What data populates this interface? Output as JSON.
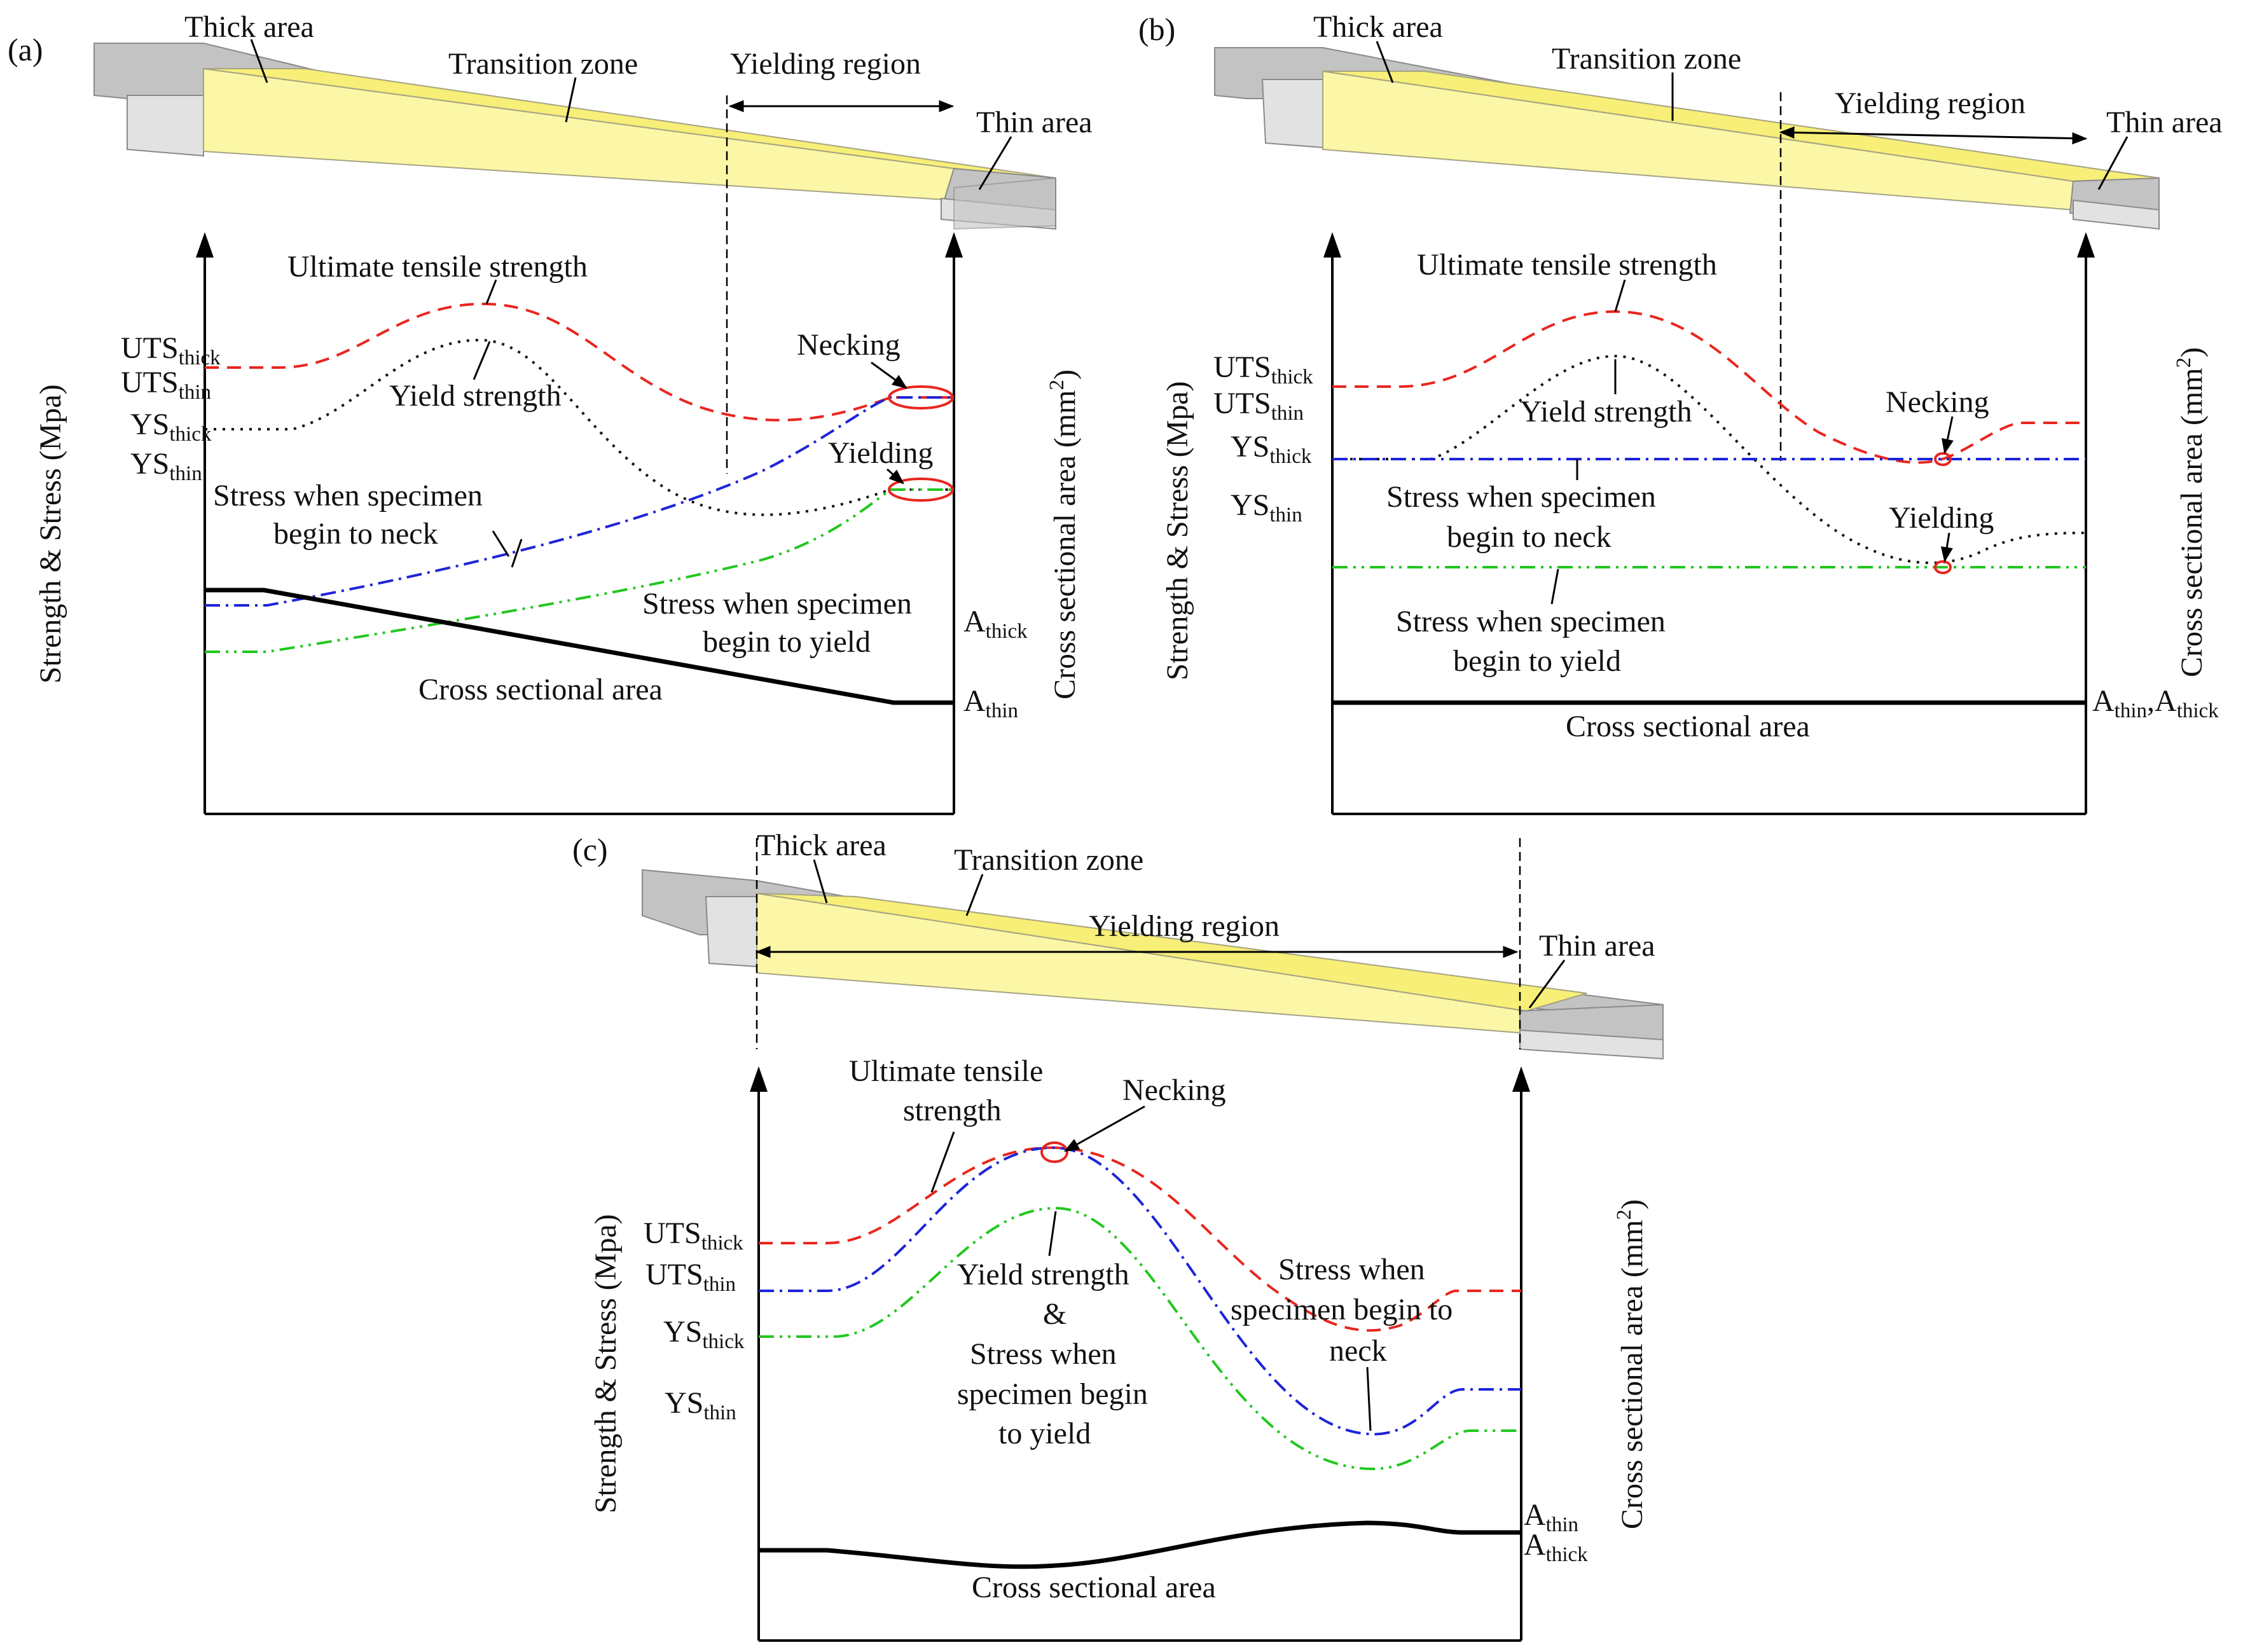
{
  "panels": {
    "a": {
      "tag": "(a)",
      "thick_area": "Thick area",
      "transition_zone": "Transition zone",
      "yielding_region": "Yielding region",
      "thin_area": "Thin area",
      "uts_curve": "Ultimate tensile strength",
      "ys_curve": "Yield strength",
      "necking": "Necking",
      "yielding": "Yielding",
      "neck_stress_1": "Stress when specimen",
      "neck_stress_2": "begin to neck",
      "yield_stress_1": "Stress when specimen",
      "yield_stress_2": "begin to yield",
      "area_curve": "Cross sectional area",
      "y_left": "Strength & Stress (Mpa)",
      "y_right": "Cross sectional area (mm",
      "y_right_sup": "2",
      "y_right_close": ")",
      "uts_thick": "UTS",
      "uts_thick_sub": "thick",
      "uts_thin": "UTS",
      "uts_thin_sub": "thin",
      "ys_thick": "YS",
      "ys_thick_sub": "thick",
      "ys_thin": "YS",
      "ys_thin_sub": "thin",
      "a_thick": "A",
      "a_thick_sub": "thick",
      "a_thin": "A",
      "a_thin_sub": "thin"
    },
    "b": {
      "tag": "(b)",
      "thick_area": "Thick area",
      "transition_zone": "Transition zone",
      "yielding_region": "Yielding region",
      "thin_area": "Thin area",
      "uts_curve": "Ultimate tensile strength",
      "ys_curve": "Yield strength",
      "necking": "Necking",
      "yielding": "Yielding",
      "neck_stress_1": "Stress when specimen",
      "neck_stress_2": "begin to neck",
      "yield_stress_1": "Stress when specimen",
      "yield_stress_2": "begin to yield",
      "area_curve": "Cross sectional area",
      "y_left": "Strength & Stress (Mpa)",
      "y_right": "Cross sectional area (mm",
      "y_right_sup": "2",
      "y_right_close": ")",
      "uts_thick": "UTS",
      "uts_thick_sub": "thick",
      "uts_thin": "UTS",
      "uts_thin_sub": "thin",
      "ys_thick": "YS",
      "ys_thick_sub": "thick",
      "ys_thin": "YS",
      "ys_thin_sub": "thin",
      "a_both_1": "A",
      "a_both_1_sub": "thin",
      "a_both_sep": ",",
      "a_both_2": "A",
      "a_both_2_sub": "thick"
    },
    "c": {
      "tag": "(c)",
      "thick_area": "Thick area",
      "transition_zone": "Transition zone",
      "yielding_region": "Yielding region",
      "thin_area": "Thin area",
      "uts_curve_1": "Ultimate tensile",
      "uts_curve_2": "strength",
      "necking": "Necking",
      "ys_stress_1": "Yield strength",
      "ys_stress_2": "&",
      "ys_stress_3": "Stress when",
      "ys_stress_4": "specimen begin",
      "ys_stress_5": "to yield",
      "neck_stress_1": "Stress when",
      "neck_stress_2": "specimen begin to",
      "neck_stress_3": "neck",
      "area_curve": "Cross sectional area",
      "y_left": "Strength & Stress (Mpa)",
      "y_right": "Cross sectional area (mm",
      "y_right_sup": "2",
      "y_right_close": ")",
      "uts_thick": "UTS",
      "uts_thick_sub": "thick",
      "uts_thin": "UTS",
      "uts_thin_sub": "thin",
      "ys_thick": "YS",
      "ys_thick_sub": "thick",
      "ys_thin": "YS",
      "ys_thin_sub": "thin",
      "a_thin": "A",
      "a_thin_sub": "thin",
      "a_thick": "A",
      "a_thick_sub": "thick"
    }
  },
  "colors": {
    "uts": "#e8261f",
    "ys": "#111111",
    "neck_stress": "#1e24d8",
    "yield_stress": "#22c71f",
    "area": "#000000",
    "specimen_yellow": "#fbf7a6",
    "specimen_gray": "#c3c3c3"
  }
}
